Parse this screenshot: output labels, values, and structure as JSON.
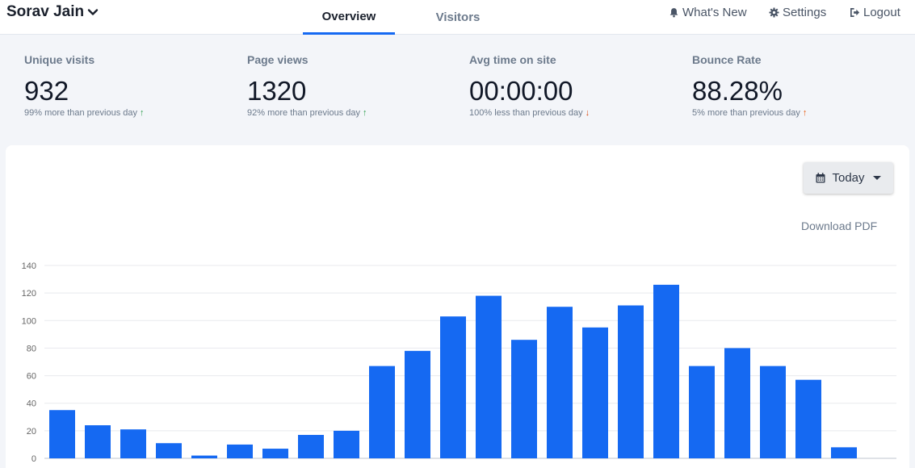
{
  "header": {
    "user_name": "Sorav Jain",
    "tabs": [
      {
        "label": "Overview",
        "active": true
      },
      {
        "label": "Visitors",
        "active": false
      }
    ],
    "links": [
      {
        "label": "What's New",
        "icon": "bell-icon"
      },
      {
        "label": "Settings",
        "icon": "gear-icon"
      },
      {
        "label": "Logout",
        "icon": "logout-icon"
      }
    ]
  },
  "stats": [
    {
      "label": "Unique visits",
      "value": "932",
      "delta": "99% more than previous day",
      "direction": "up",
      "arrow": "↑",
      "arrow_color": "#2e9e4f"
    },
    {
      "label": "Page views",
      "value": "1320",
      "delta": "92% more than previous day",
      "direction": "up",
      "arrow": "↑",
      "arrow_color": "#2e9e4f"
    },
    {
      "label": "Avg time on site",
      "value": "00:00:00",
      "delta": "100% less than previous day",
      "direction": "down",
      "arrow": "↓",
      "arrow_color": "#d9480f"
    },
    {
      "label": "Bounce Rate",
      "value": "88.28%",
      "delta": "5% more than previous day",
      "direction": "up",
      "arrow": "↑",
      "arrow_color": "#e8590c"
    }
  ],
  "controls": {
    "period_label": "Today",
    "download_label": "Download PDF"
  },
  "colors": {
    "accent": "#1569f2",
    "bar": "#1569f2"
  },
  "chart_data": {
    "type": "bar",
    "title": "",
    "xlabel": "",
    "ylabel": "",
    "ylim": [
      0,
      140
    ],
    "yticks": [
      0,
      20,
      40,
      60,
      80,
      100,
      120,
      140
    ],
    "grid": true,
    "values": [
      35,
      24,
      21,
      11,
      2,
      10,
      7,
      17,
      20,
      67,
      78,
      103,
      118,
      86,
      110,
      95,
      111,
      126,
      67,
      80,
      67,
      57,
      8
    ]
  }
}
